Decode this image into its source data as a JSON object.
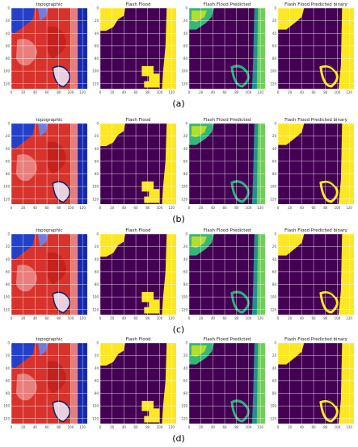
{
  "ticks": [
    0,
    20,
    40,
    60,
    80,
    100,
    120
  ],
  "rows": [
    {
      "label": "(a)",
      "panels": [
        {
          "title": "topographic"
        },
        {
          "title": "Flash Flood"
        },
        {
          "title": "Flash Flood Predicted"
        },
        {
          "title": "Flash Flood Predicted binary"
        }
      ]
    },
    {
      "label": "(b)",
      "panels": [
        {
          "title": "topographic"
        },
        {
          "title": "Flash Flood"
        },
        {
          "title": "Flash Flood Predicted"
        },
        {
          "title": "Flash Flood Predicted binary"
        }
      ]
    },
    {
      "label": "(c)",
      "panels": [
        {
          "title": "topographic"
        },
        {
          "title": "Flash Flood"
        },
        {
          "title": "Flash Flood Predicted"
        },
        {
          "title": "Flash Flood Predicted binary"
        }
      ]
    },
    {
      "label": "(d)",
      "panels": [
        {
          "title": "topographic"
        },
        {
          "title": "Flash Flood"
        },
        {
          "title": "Flash Flood Predicted"
        },
        {
          "title": "Flash Flood Predicted binary"
        }
      ]
    }
  ]
}
